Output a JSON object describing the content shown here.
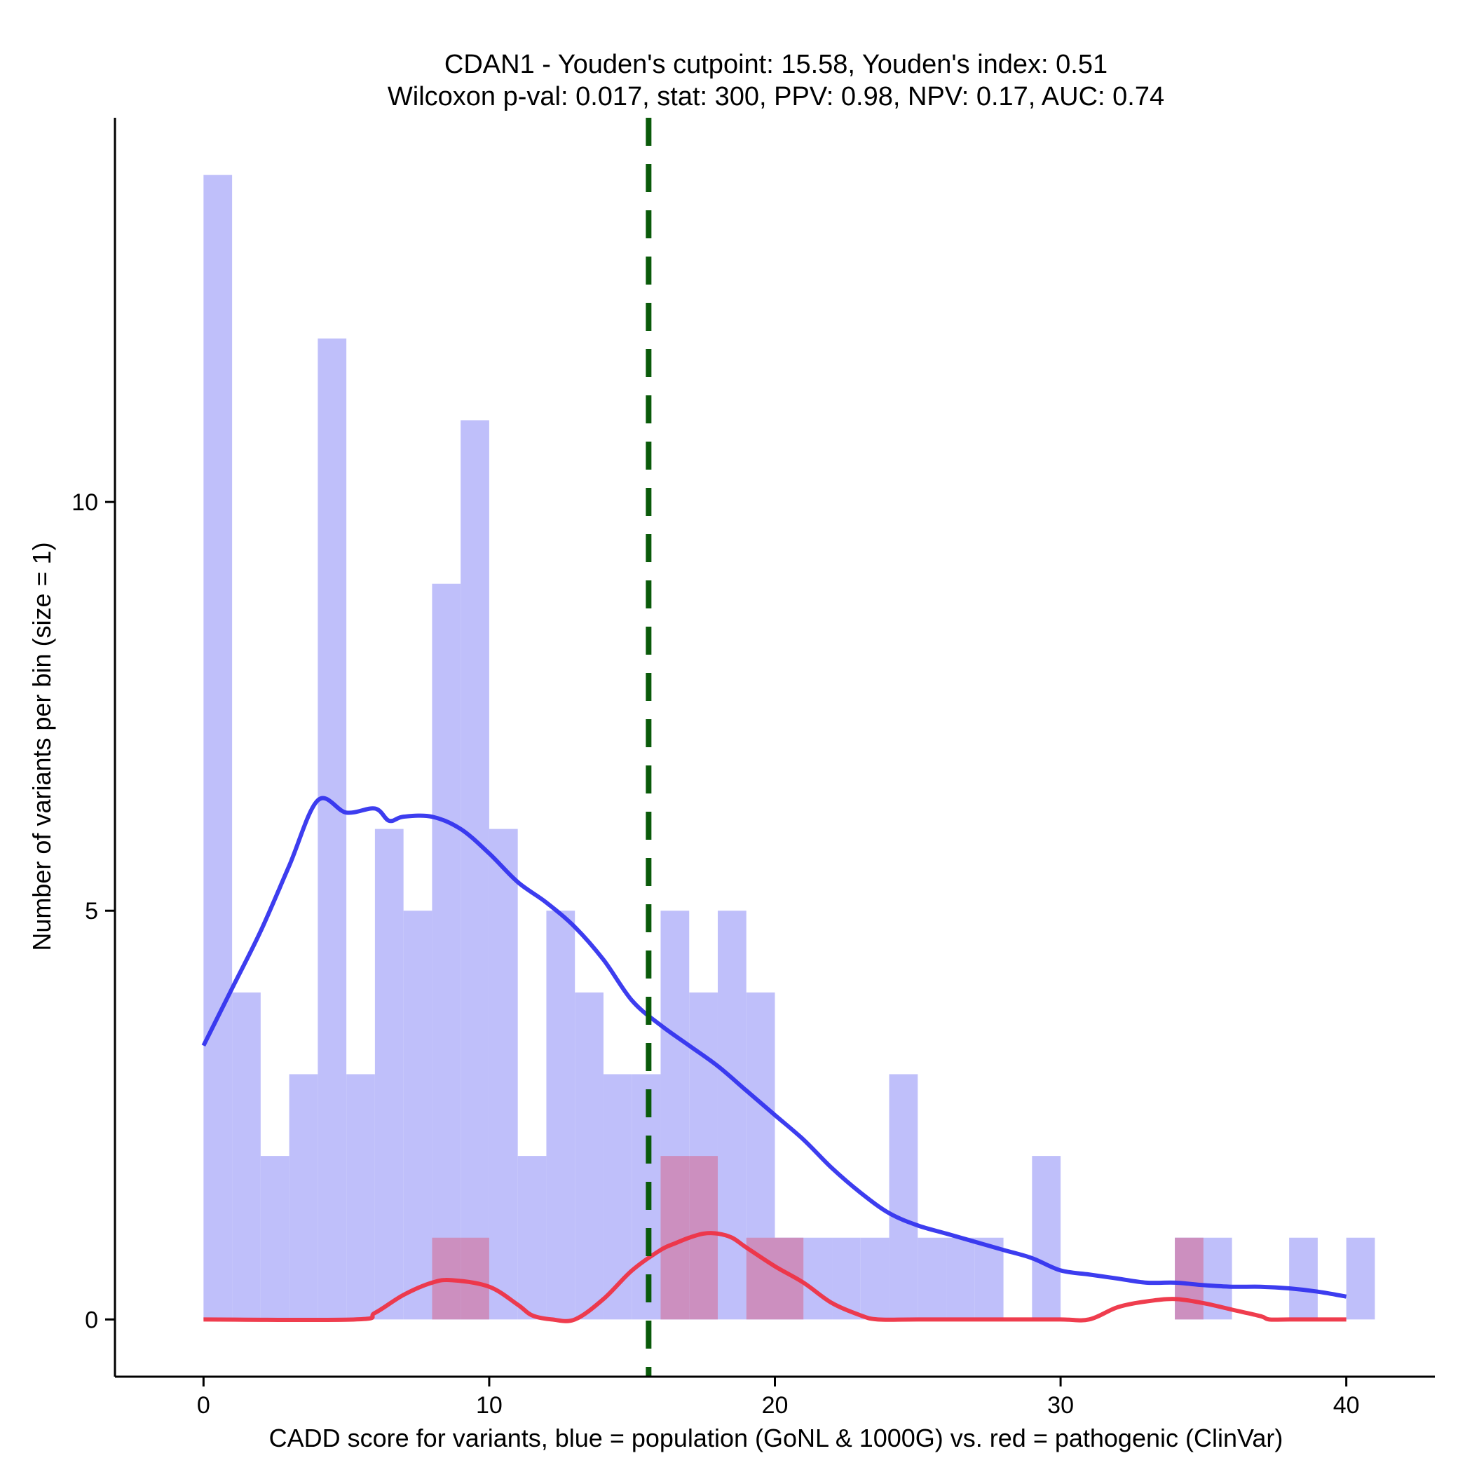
{
  "chart_data": {
    "type": "bar",
    "title_line1": "CDAN1 - Youden's cutpoint: 15.58, Youden's index: 0.51",
    "title_line2": "Wilcoxon p-val: 0.017, stat: 300, PPV: 0.98, NPV: 0.17, AUC: 0.74",
    "xlabel": "CADD score for variants, blue = population (GoNL & 1000G) vs. red = pathogenic (ClinVar)",
    "ylabel": "Number of variants per bin (size = 1)",
    "xlim": [
      -3.1,
      43.1
    ],
    "ylim": [
      -0.7,
      14.7
    ],
    "x_ticks": [
      0,
      10,
      20,
      30,
      40
    ],
    "x_tick_labels": [
      "0",
      "10",
      "20",
      "30",
      "40"
    ],
    "y_ticks": [
      0,
      5,
      10
    ],
    "y_tick_labels": [
      "0",
      "5",
      "10"
    ],
    "bin_width": 1,
    "cutpoint": 15.58,
    "colors": {
      "population_bar": "#bfbffa",
      "pathogenic_bar": "#cc8fbf",
      "population_line": "#3333ee",
      "pathogenic_line": "#ee3344",
      "cutpoint_line": "#0a5a0a"
    },
    "series": [
      {
        "name": "population (GoNL & 1000G)",
        "bin_starts": [
          0,
          1,
          2,
          3,
          4,
          5,
          6,
          7,
          8,
          9,
          10,
          11,
          12,
          13,
          14,
          15,
          16,
          17,
          18,
          19,
          20,
          21,
          22,
          23,
          24,
          25,
          26,
          27,
          28,
          29,
          30,
          31,
          32,
          33,
          34,
          35,
          36,
          37,
          38,
          39,
          40
        ],
        "values": [
          14,
          4,
          2,
          3,
          12,
          3,
          6,
          5,
          9,
          11,
          6,
          2,
          5,
          4,
          3,
          3,
          5,
          4,
          5,
          4,
          1,
          1,
          1,
          1,
          3,
          1,
          1,
          1,
          0,
          2,
          0,
          0,
          0,
          0,
          1,
          1,
          0,
          0,
          1,
          0,
          1
        ]
      },
      {
        "name": "pathogenic (ClinVar)",
        "bin_starts": [
          8,
          9,
          16,
          17,
          19,
          20,
          34
        ],
        "values": [
          1,
          1,
          2,
          2,
          1,
          1,
          1
        ]
      }
    ],
    "density_population": {
      "x": [
        0,
        1,
        2,
        3,
        4,
        5,
        6,
        6.5,
        7,
        8,
        9,
        10,
        11,
        12,
        13,
        14,
        15,
        16,
        17,
        18,
        19,
        20,
        21,
        22,
        23,
        24,
        25,
        26,
        27,
        28,
        29,
        30,
        31,
        32,
        33,
        34,
        35,
        36,
        37,
        38,
        39,
        40
      ],
      "y": [
        3.35,
        4.05,
        4.75,
        5.55,
        6.35,
        6.2,
        6.25,
        6.1,
        6.15,
        6.15,
        6.0,
        5.7,
        5.35,
        5.1,
        4.8,
        4.4,
        3.9,
        3.6,
        3.35,
        3.1,
        2.8,
        2.5,
        2.2,
        1.85,
        1.55,
        1.3,
        1.15,
        1.05,
        0.95,
        0.85,
        0.75,
        0.6,
        0.55,
        0.5,
        0.45,
        0.45,
        0.42,
        0.4,
        0.4,
        0.38,
        0.34,
        0.28
      ]
    },
    "density_pathogenic": {
      "x": [
        0,
        5.3,
        6,
        7,
        8,
        8.7,
        10,
        11,
        11.5,
        12.2,
        13,
        14,
        15,
        16,
        16.5,
        17,
        17.5,
        18,
        18.5,
        19,
        20,
        21,
        22,
        23,
        23.6,
        25,
        28,
        30,
        31,
        32,
        33,
        34,
        35,
        36,
        37,
        37.3,
        38,
        40
      ],
      "y": [
        0,
        0,
        0.08,
        0.3,
        0.45,
        0.48,
        0.4,
        0.18,
        0.05,
        0,
        0,
        0.25,
        0.6,
        0.85,
        0.93,
        1.0,
        1.05,
        1.05,
        1.0,
        0.88,
        0.65,
        0.45,
        0.2,
        0.05,
        0,
        0,
        0,
        0,
        0,
        0.15,
        0.22,
        0.25,
        0.2,
        0.12,
        0.04,
        0,
        0,
        0
      ]
    }
  }
}
